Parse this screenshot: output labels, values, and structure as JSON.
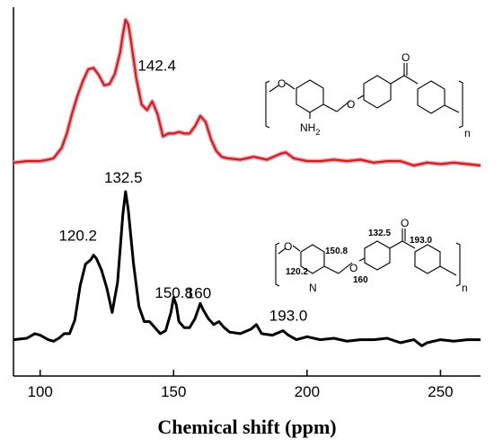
{
  "chart_data": {
    "type": "line",
    "xlabel": "Chemical shift (ppm)",
    "xlim": [
      90,
      265
    ],
    "xticks": [
      100,
      150,
      200,
      250
    ],
    "grid": false,
    "series": [
      {
        "color": "#cc2020",
        "x": [
          90,
          95,
          100,
          103,
          105,
          108,
          110,
          112,
          114,
          116,
          118,
          120,
          122,
          124,
          126,
          128,
          130,
          131,
          132,
          133,
          134,
          136,
          138,
          140,
          142,
          144,
          146,
          148,
          150,
          152,
          154,
          156,
          158,
          160,
          162,
          164,
          166,
          168,
          170,
          175,
          180,
          185,
          190,
          192,
          195,
          200,
          205,
          210,
          215,
          220,
          225,
          230,
          235,
          240,
          245,
          250,
          255,
          260,
          265
        ],
        "y": [
          0.02,
          0.03,
          0.03,
          0.04,
          0.05,
          0.12,
          0.22,
          0.36,
          0.48,
          0.58,
          0.66,
          0.67,
          0.62,
          0.55,
          0.56,
          0.63,
          0.78,
          0.9,
          1.0,
          0.97,
          0.86,
          0.6,
          0.42,
          0.38,
          0.44,
          0.35,
          0.2,
          0.22,
          0.22,
          0.23,
          0.22,
          0.22,
          0.27,
          0.34,
          0.3,
          0.18,
          0.1,
          0.06,
          0.05,
          0.04,
          0.06,
          0.04,
          0.08,
          0.09,
          0.05,
          0.03,
          0.03,
          0.04,
          0.03,
          0.04,
          0.02,
          0.03,
          0.03,
          0.0,
          0.02,
          0.01,
          0.02,
          0.01,
          0.0
        ]
      },
      {
        "color": "#000000",
        "x": [
          90,
          95,
          98,
          100,
          103,
          105,
          107,
          109,
          111,
          113,
          115,
          117,
          119,
          120,
          121,
          123,
          125,
          127,
          129,
          131,
          132,
          133,
          135,
          137,
          139,
          141,
          143,
          145,
          147,
          149,
          150,
          151,
          152,
          154,
          156,
          158,
          160,
          161,
          163,
          165,
          167,
          169,
          171,
          175,
          179,
          181,
          183,
          187,
          191,
          193,
          196,
          200,
          205,
          210,
          215,
          220,
          225,
          230,
          235,
          240,
          243,
          245,
          250,
          255,
          260,
          265
        ],
        "y": [
          0.02,
          0.03,
          0.06,
          0.05,
          0.02,
          0.01,
          0.03,
          0.06,
          0.06,
          0.15,
          0.38,
          0.52,
          0.55,
          0.58,
          0.56,
          0.48,
          0.36,
          0.2,
          0.4,
          0.85,
          1.0,
          0.88,
          0.52,
          0.24,
          0.14,
          0.14,
          0.1,
          0.06,
          0.08,
          0.2,
          0.3,
          0.25,
          0.14,
          0.1,
          0.1,
          0.16,
          0.26,
          0.22,
          0.16,
          0.12,
          0.14,
          0.1,
          0.07,
          0.06,
          0.09,
          0.12,
          0.06,
          0.05,
          0.08,
          0.05,
          0.02,
          0.04,
          0.02,
          0.03,
          0.01,
          0.02,
          0.02,
          0.03,
          0.0,
          0.02,
          -0.02,
          0.0,
          0.02,
          0.01,
          0.02,
          0.02
        ]
      }
    ],
    "annotations": [
      {
        "text": "142.4",
        "x": 142.4,
        "series": 0
      },
      {
        "text": "132.5",
        "x": 132.5,
        "series": 1
      },
      {
        "text": "120.2",
        "x": 120.2,
        "series": 1
      },
      {
        "text": "150.8",
        "x": 150.8,
        "series": 1
      },
      {
        "text": "160",
        "x": 160,
        "series": 1
      },
      {
        "text": "193.0",
        "x": 193.0,
        "series": 1
      }
    ]
  },
  "structures": {
    "top": {
      "o1": "O",
      "o2": "O",
      "o_ketone": "O",
      "nh2": "NH",
      "nh2_sub": "2",
      "n": "n"
    },
    "bottom": {
      "o1": "O",
      "o2": "O",
      "o_ketone": "O",
      "l1325": "132.5",
      "l1930": "193.0",
      "l1202": "120.2",
      "l1508": "150.8",
      "l160": "160",
      "n_frag": "N",
      "n": "n"
    }
  }
}
